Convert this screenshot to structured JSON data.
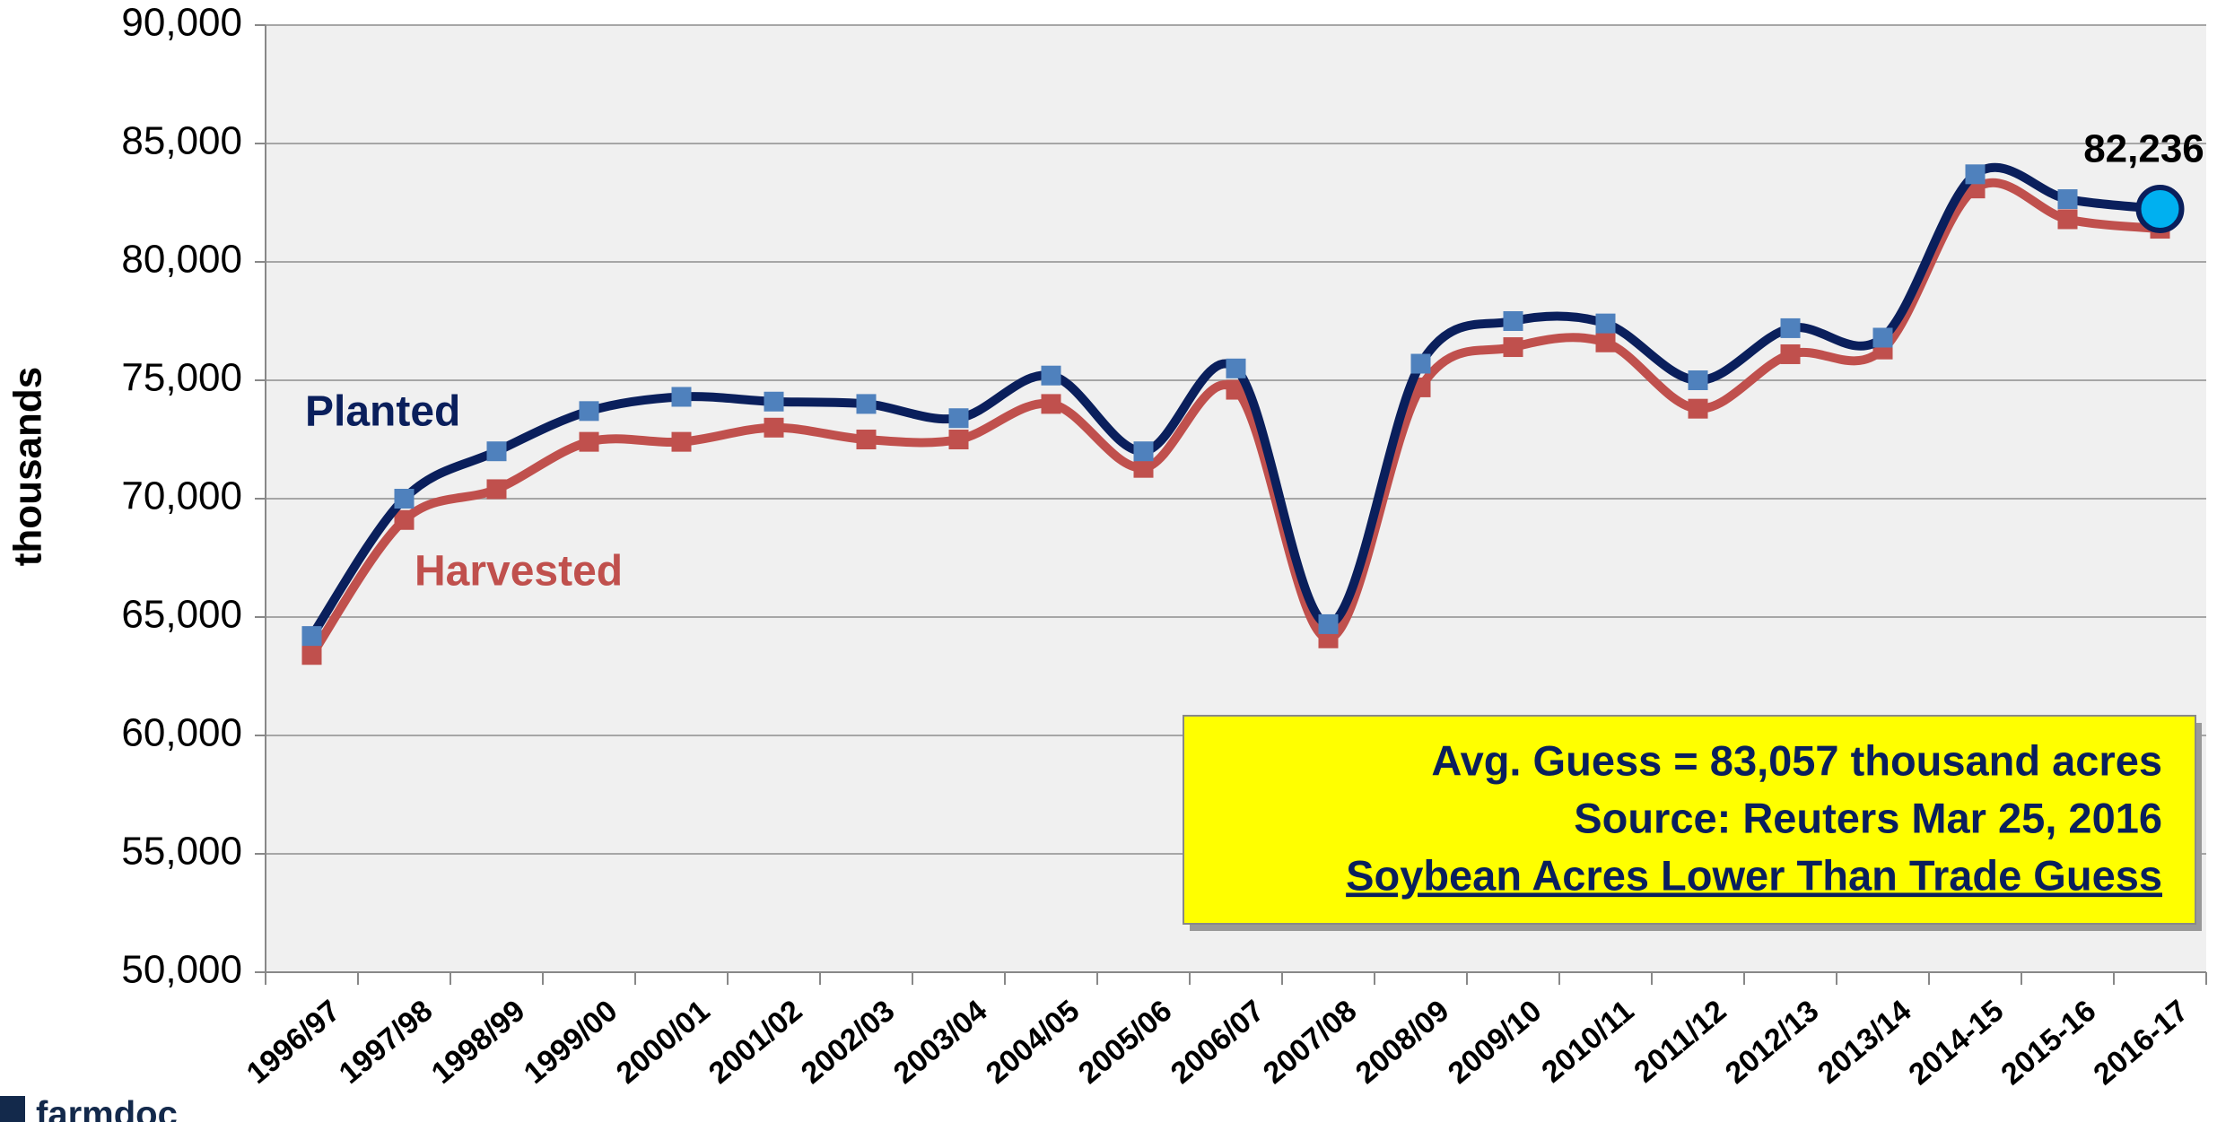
{
  "chart_data": {
    "type": "line",
    "ylabel": "thousands",
    "categories": [
      "1996/97",
      "1997/98",
      "1998/99",
      "1999/00",
      "2000/01",
      "2001/02",
      "2002/03",
      "2003/04",
      "2004/05",
      "2005/06",
      "2006/07",
      "2007/08",
      "2008/09",
      "2009/10",
      "2010/11",
      "2011/12",
      "2012/13",
      "2013/14",
      "2014-15",
      "2015-16",
      "2016-17"
    ],
    "series": [
      {
        "name": "Planted",
        "color": "#0a1f5c",
        "marker_color": "#4f81bd",
        "values": [
          64200,
          70000,
          72000,
          73700,
          74300,
          74100,
          74000,
          73400,
          75200,
          72000,
          75500,
          64700,
          75700,
          77500,
          77400,
          75000,
          77200,
          76800,
          83700,
          82650,
          82236
        ],
        "value_labels": [
          null,
          null,
          null,
          null,
          null,
          null,
          null,
          null,
          null,
          null,
          null,
          null,
          null,
          null,
          null,
          null,
          null,
          null,
          null,
          null,
          "82,236"
        ]
      },
      {
        "name": "Harvested",
        "color": "#c0504d",
        "marker_color": "#c0504d",
        "values": [
          63400,
          69100,
          70400,
          72400,
          72400,
          73000,
          72500,
          72500,
          74000,
          71300,
          74600,
          64100,
          74700,
          76400,
          76600,
          73800,
          76100,
          76300,
          83100,
          81800,
          81400
        ]
      }
    ],
    "ylim": [
      50000,
      90000
    ],
    "yticks": [
      {
        "value": 50000,
        "label": "50,000"
      },
      {
        "value": 55000,
        "label": "55,000"
      },
      {
        "value": 60000,
        "label": "60,000"
      },
      {
        "value": 65000,
        "label": "65,000"
      },
      {
        "value": 70000,
        "label": "70,000"
      },
      {
        "value": 75000,
        "label": "75,000"
      },
      {
        "value": 80000,
        "label": "80,000"
      },
      {
        "value": 85000,
        "label": "85,000"
      },
      {
        "value": 90000,
        "label": "90,000"
      }
    ],
    "grid": true,
    "annotation_box": [
      "Avg. Guess = 83,057 thousand acres",
      "Source: Reuters Mar 25, 2016",
      "Soybean Acres Lower Than Trade Guess"
    ],
    "logo": "farmdoc"
  }
}
